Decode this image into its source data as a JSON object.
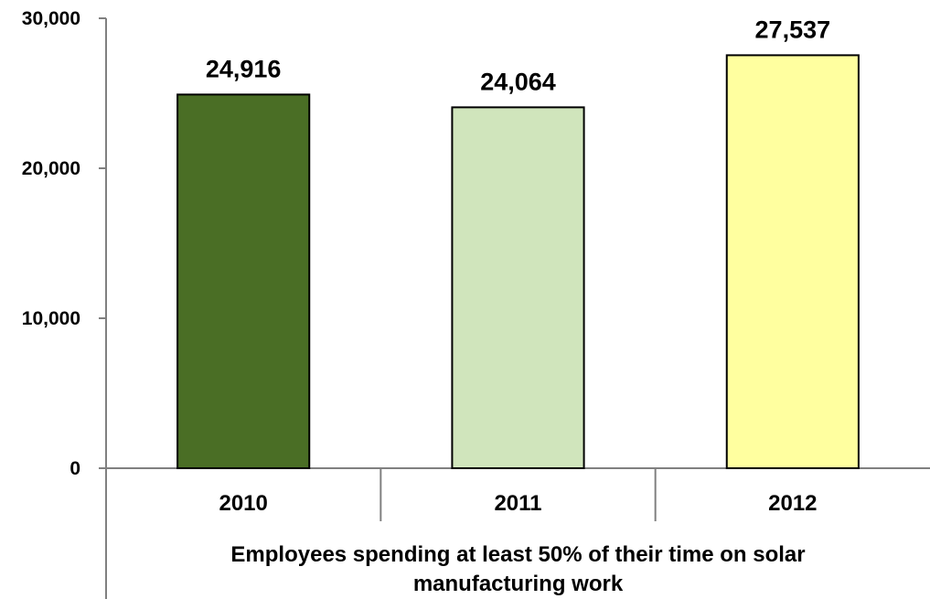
{
  "chart_data": {
    "type": "bar",
    "title": "",
    "categories": [
      "2010",
      "2011",
      "2012"
    ],
    "values": [
      24916,
      24064,
      27537
    ],
    "data_labels": [
      "24,916",
      "24,064",
      "27,537"
    ],
    "ylim": [
      0,
      30000
    ],
    "yticks": [
      0,
      10000,
      20000,
      30000
    ],
    "ytick_labels": [
      "0",
      "10,000",
      "20,000",
      "30,000"
    ],
    "xlabel_lines": [
      "Employees spending at least 50% of their time on solar",
      "manufacturing work"
    ],
    "ylabel": "",
    "grid": false,
    "legend": "none",
    "bar_colors": [
      "#4a6e25",
      "#d0e5bc",
      "#ffff9f"
    ],
    "bar_edge_color": "#000000",
    "axis_color": "#808080"
  }
}
